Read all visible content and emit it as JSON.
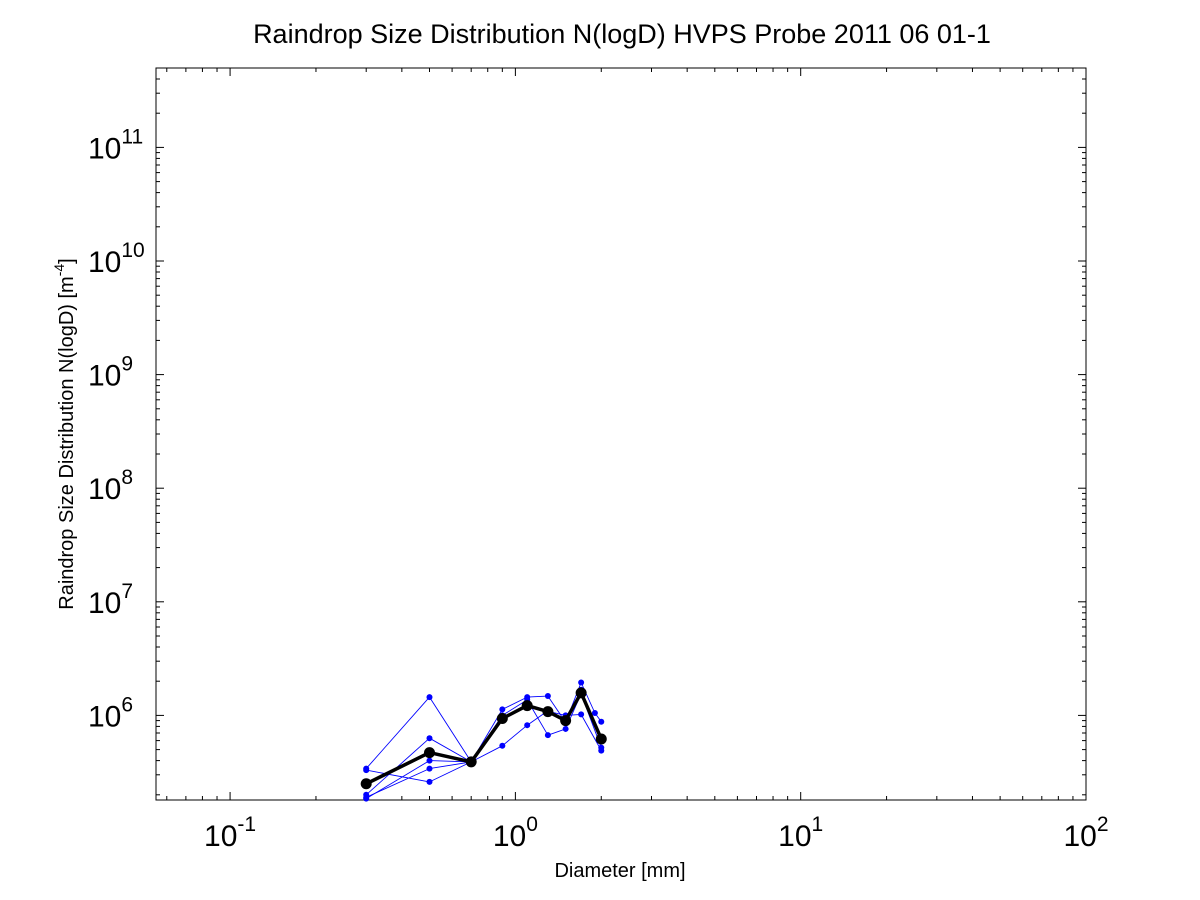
{
  "chart_data": {
    "type": "line",
    "title": "Raindrop Size Distribution N(logD) HVPS Probe 2011 06 01-1",
    "xlabel": "Diameter [mm]",
    "ylabel": "Raindrop Size Distribution N(logD) [m",
    "ylabel_sup": "-4",
    "ylabel_tail": "]",
    "x_scale": "log",
    "y_scale": "log",
    "xlim": [
      0.055,
      100
    ],
    "ylim": [
      180000,
      500000000000
    ],
    "x_ticks": [
      {
        "value": 0.1,
        "base": "10",
        "exp": "-1"
      },
      {
        "value": 1,
        "base": "10",
        "exp": "0"
      },
      {
        "value": 10,
        "base": "10",
        "exp": "1"
      },
      {
        "value": 100,
        "base": "10",
        "exp": "2"
      }
    ],
    "y_ticks": [
      {
        "value": 1000000,
        "base": "10",
        "exp": "6"
      },
      {
        "value": 10000000,
        "base": "10",
        "exp": "7"
      },
      {
        "value": 100000000,
        "base": "10",
        "exp": "8"
      },
      {
        "value": 1000000000,
        "base": "10",
        "exp": "9"
      },
      {
        "value": 10000000000,
        "base": "10",
        "exp": "10"
      },
      {
        "value": 100000000000,
        "base": "10",
        "exp": "11"
      }
    ],
    "grid": false,
    "legend": "none",
    "colors": {
      "samples": "#0000ff",
      "mean": "#000000",
      "axes": "#000000"
    },
    "series": [
      {
        "role": "sample",
        "x": [
          0.3,
          0.5,
          0.7,
          0.9,
          1.1,
          1.3,
          1.5,
          1.7,
          1.9,
          2.0
        ],
        "y": [
          340000,
          1450000,
          390000,
          1130000,
          1450000,
          1480000,
          870000,
          1950000,
          1050000,
          880000
        ]
      },
      {
        "role": "sample",
        "x": [
          0.3,
          0.5,
          0.7,
          0.9,
          1.1,
          1.3,
          1.5,
          1.7,
          2.0
        ],
        "y": [
          200000,
          630000,
          390000,
          1000000,
          1370000,
          670000,
          760000,
          1550000,
          520000
        ]
      },
      {
        "role": "sample",
        "x": [
          0.3,
          0.5,
          0.7,
          0.9,
          1.1,
          1.3,
          1.5,
          1.7,
          2.0
        ],
        "y": [
          185000,
          400000,
          390000,
          540000,
          820000,
          1100000,
          900000,
          1680000,
          600000
        ]
      },
      {
        "role": "sample",
        "x": [
          0.3,
          0.5,
          0.7,
          0.9,
          1.1,
          1.5,
          1.7,
          2.0
        ],
        "y": [
          330000,
          260000,
          390000,
          920000,
          1200000,
          1000000,
          1020000,
          490000
        ]
      },
      {
        "role": "sample",
        "x": [
          0.3,
          0.5,
          0.7
        ],
        "y": [
          190000,
          340000,
          390000
        ]
      },
      {
        "role": "mean",
        "x": [
          0.3,
          0.5,
          0.7,
          0.9,
          1.1,
          1.3,
          1.5,
          1.7,
          2.0
        ],
        "y": [
          250000,
          470000,
          390000,
          940000,
          1220000,
          1080000,
          900000,
          1580000,
          620000
        ]
      }
    ]
  }
}
